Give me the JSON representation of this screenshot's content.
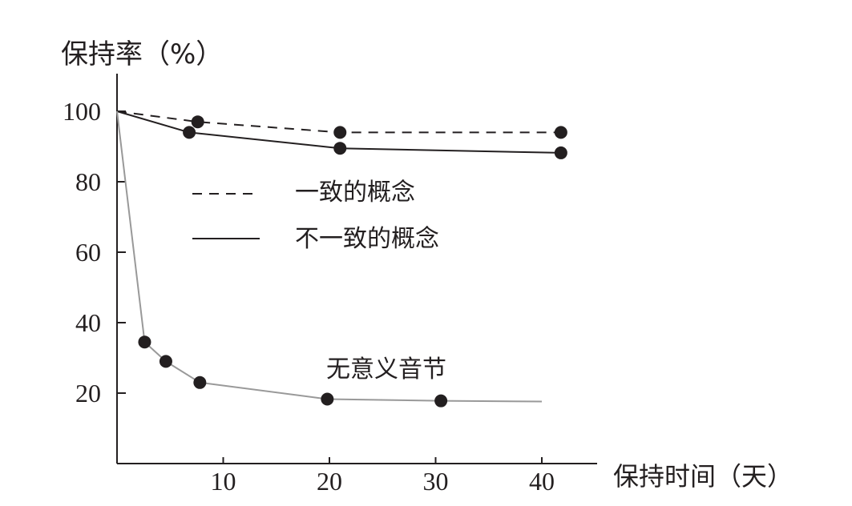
{
  "chart_data": {
    "type": "line",
    "title": "",
    "ylabel": "保持率（%）",
    "xlabel": "保持时间（天）",
    "xlim": [
      0,
      45
    ],
    "ylim": [
      0,
      110
    ],
    "x_ticks": [
      10,
      20,
      30,
      40
    ],
    "y_ticks": [
      20,
      40,
      60,
      80,
      100
    ],
    "grid": false,
    "legend_position": "center",
    "series": [
      {
        "name": "一致的概念",
        "line_style": "dashed",
        "color": "#231f20",
        "x": [
          0,
          7.6,
          21,
          41.8
        ],
        "y": [
          100,
          97,
          94,
          94
        ],
        "markers": [
          7.6,
          21,
          41.8
        ]
      },
      {
        "name": "不一致的概念",
        "line_style": "solid",
        "color": "#231f20",
        "x": [
          0,
          6.8,
          21,
          41.8
        ],
        "y": [
          100,
          94,
          89.5,
          88.2
        ],
        "markers": [
          6.8,
          21,
          41.8
        ]
      },
      {
        "name": "无意义音节",
        "line_style": "solid",
        "color": "#999999",
        "x": [
          0,
          2.6,
          4.6,
          7.8,
          19.8,
          30.5,
          40
        ],
        "y": [
          100,
          34.5,
          29,
          23,
          18.3,
          17.8,
          17.6
        ],
        "markers": [
          2.6,
          4.6,
          7.8,
          19.8,
          30.5
        ]
      }
    ]
  }
}
